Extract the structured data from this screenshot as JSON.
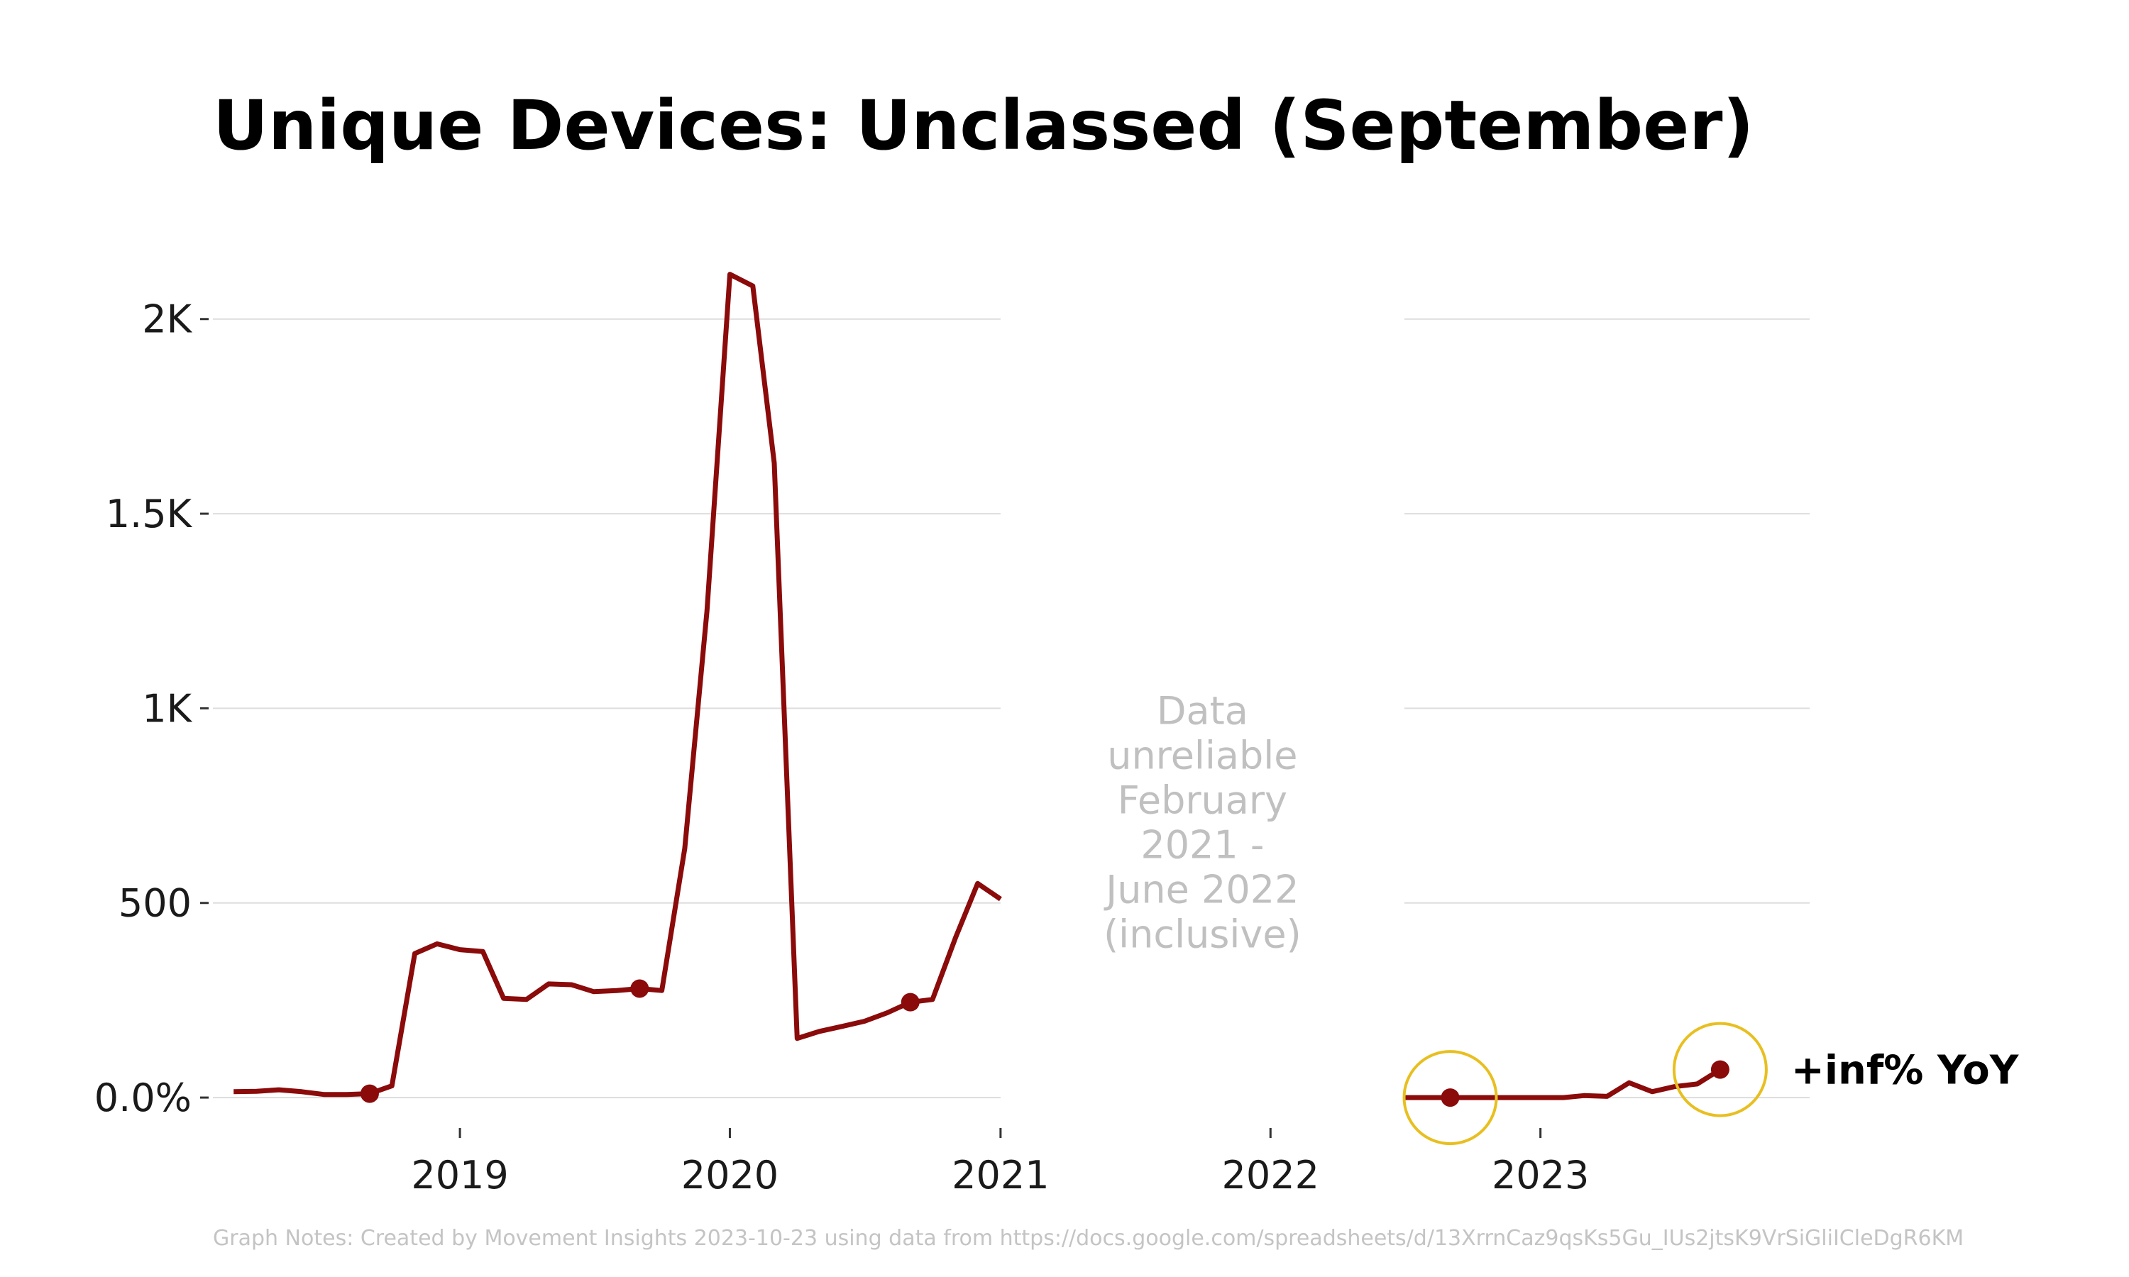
{
  "colors": {
    "line": "#8b0a0a",
    "highlight": "#e8bf20",
    "grid": "#dddddd",
    "gap_text": "#c0c0c0"
  },
  "chart_data": {
    "type": "line",
    "title": "Unique Devices: Unclassed (September)",
    "xlabel": "",
    "ylabel": "",
    "ylim": [
      -60,
      2200
    ],
    "xlim": [
      "2018-02-01",
      "2023-12-31"
    ],
    "y_ticks": [
      {
        "value": 0,
        "label": "0.0%"
      },
      {
        "value": 500,
        "label": "500"
      },
      {
        "value": 1000,
        "label": "1K"
      },
      {
        "value": 1500,
        "label": "1.5K"
      },
      {
        "value": 2000,
        "label": "2K"
      }
    ],
    "x_ticks": [
      {
        "value": "2019-01-01",
        "label": "2019"
      },
      {
        "value": "2020-01-01",
        "label": "2020"
      },
      {
        "value": "2021-01-01",
        "label": "2021"
      },
      {
        "value": "2022-01-01",
        "label": "2022"
      },
      {
        "value": "2023-01-01",
        "label": "2023"
      }
    ],
    "grid": "horizontal",
    "gap": {
      "from": "2021-01-01",
      "to": "2022-07-01",
      "note": [
        "Data",
        "unreliable",
        "February",
        "2021 -",
        "June 2022",
        "(inclusive)"
      ]
    },
    "series": [
      {
        "segment": "before-gap",
        "x": [
          "2018-03-01",
          "2018-04-01",
          "2018-05-01",
          "2018-06-01",
          "2018-07-01",
          "2018-08-01",
          "2018-09-01",
          "2018-10-01",
          "2018-11-01",
          "2018-12-01",
          "2019-01-01",
          "2019-02-01",
          "2019-03-01",
          "2019-04-01",
          "2019-05-01",
          "2019-06-01",
          "2019-07-01",
          "2019-08-01",
          "2019-09-01",
          "2019-10-01",
          "2019-11-01",
          "2019-12-01",
          "2020-01-01",
          "2020-02-01",
          "2020-03-01",
          "2020-04-01",
          "2020-05-01",
          "2020-06-01",
          "2020-07-01",
          "2020-08-01",
          "2020-09-01",
          "2020-10-01",
          "2020-11-01",
          "2020-12-01",
          "2021-01-01"
        ],
        "y": [
          15,
          16,
          20,
          15,
          8,
          8,
          10,
          30,
          370,
          395,
          380,
          375,
          255,
          252,
          292,
          290,
          272,
          275,
          280,
          275,
          640,
          1250,
          2115,
          2085,
          1630,
          152,
          170,
          183,
          196,
          218,
          245,
          252,
          410,
          550,
          510
        ]
      },
      {
        "segment": "after-gap",
        "x": [
          "2022-07-01",
          "2022-08-01",
          "2022-09-01",
          "2022-10-01",
          "2022-11-01",
          "2022-12-01",
          "2023-01-01",
          "2023-02-01",
          "2023-03-01",
          "2023-04-01",
          "2023-05-01",
          "2023-06-01",
          "2023-07-01",
          "2023-08-01",
          "2023-09-01"
        ],
        "y": [
          0,
          0,
          0,
          0,
          0,
          0,
          0,
          0,
          5,
          3,
          38,
          15,
          28,
          35,
          72
        ]
      }
    ],
    "markers": [
      {
        "x": "2018-09-01",
        "y": 10
      },
      {
        "x": "2019-09-01",
        "y": 280
      },
      {
        "x": "2020-09-01",
        "y": 245
      },
      {
        "x": "2022-09-01",
        "y": 0,
        "highlight": true
      },
      {
        "x": "2023-09-01",
        "y": 72,
        "highlight": true
      }
    ],
    "annotation": {
      "text": "+inf% YoY"
    },
    "notes": "Graph Notes: Created by Movement Insights 2023-10-23 using data from https://docs.google.com/spreadsheets/d/13XrrnCaz9qsKs5Gu_IUs2jtsK9VrSiGliICleDgR6KM"
  }
}
